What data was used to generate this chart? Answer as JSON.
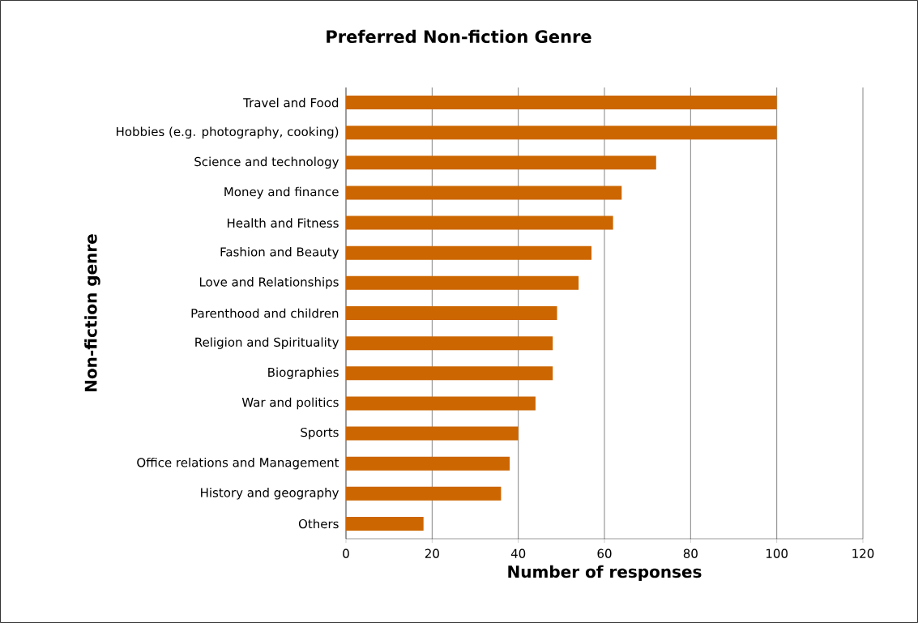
{
  "chart_data": {
    "type": "bar",
    "orientation": "horizontal",
    "title": "Preferred Non-fiction Genre",
    "xlabel": "Number of responses",
    "ylabel": "Non-fiction genre",
    "categories": [
      "Travel and Food",
      "Hobbies (e.g. photography, cooking)",
      "Science and technology",
      "Money and finance",
      "Health and Fitness",
      "Fashion and Beauty",
      "Love and Relationships",
      "Parenthood and children",
      "Religion and Spirituality",
      "Biographies",
      "War and politics",
      "Sports",
      "Office relations and Management",
      "History and geography",
      "Others"
    ],
    "values": [
      100,
      100,
      72,
      64,
      62,
      57,
      54,
      49,
      48,
      48,
      44,
      40,
      38,
      36,
      18
    ],
    "color": "#cc6600",
    "xlim": [
      0,
      120
    ],
    "xticks": [
      0,
      20,
      40,
      60,
      80,
      100,
      120
    ],
    "grid": "x"
  }
}
